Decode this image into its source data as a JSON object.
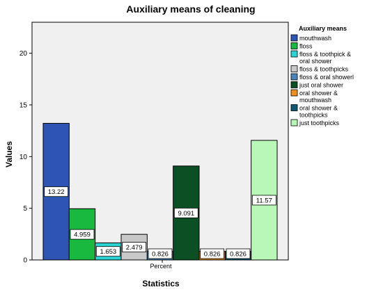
{
  "chart_data": {
    "type": "bar",
    "title": "Auxiliary means of cleaning",
    "xlabel": "Statistics",
    "ylabel": "Values",
    "categories": [
      "Percent"
    ],
    "ylim": [
      0,
      23
    ],
    "yticks": [
      0,
      5,
      10,
      15,
      20
    ],
    "grid": false,
    "legend": {
      "title": "Auxiliary means",
      "placement": "right"
    },
    "series": [
      {
        "name": "mouthwash",
        "values": [
          13.22
        ],
        "label": "13.22",
        "color": "#2e55b5"
      },
      {
        "name": "floss",
        "values": [
          4.959
        ],
        "label": "4.959",
        "color": "#19b83e"
      },
      {
        "name": "floss & toothpick & oral shower",
        "values": [
          1.653
        ],
        "label": "1.653",
        "color": "#2cd3d3"
      },
      {
        "name": "floss & toothpicks",
        "values": [
          2.479
        ],
        "label": "2.479",
        "color": "#c8c8c8"
      },
      {
        "name": "floss & oral showerl",
        "values": [
          0.826
        ],
        "label": "0.826",
        "color": "#4a84b8"
      },
      {
        "name": "just oral shower",
        "values": [
          9.091
        ],
        "label": "9.091",
        "color": "#0c4f25"
      },
      {
        "name": "oral shower & mouthwash",
        "values": [
          0.826
        ],
        "label": "0.826",
        "color": "#f0901e"
      },
      {
        "name": "oral shower & toothpicks",
        "values": [
          0.826
        ],
        "label": "0.826",
        "color": "#0f5a70"
      },
      {
        "name": "just toothpicks",
        "values": [
          11.57
        ],
        "label": "11.57",
        "color": "#b8f7b8"
      }
    ]
  }
}
